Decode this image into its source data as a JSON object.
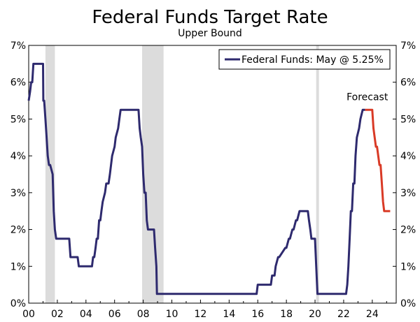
{
  "chart_data": {
    "type": "line",
    "title": "Federal Funds Target Rate",
    "subtitle": "Upper Bound",
    "xlabel": "",
    "ylabel": "",
    "xlim": [
      2000,
      2025.67
    ],
    "ylim": [
      0,
      7
    ],
    "y_ticks": [
      "0%",
      "1%",
      "2%",
      "3%",
      "4%",
      "5%",
      "6%",
      "7%"
    ],
    "x_ticks": [
      {
        "x": 2000,
        "label": "00"
      },
      {
        "x": 2002,
        "label": "02"
      },
      {
        "x": 2004,
        "label": "04"
      },
      {
        "x": 2006,
        "label": "06"
      },
      {
        "x": 2008,
        "label": "08"
      },
      {
        "x": 2010,
        "label": "10"
      },
      {
        "x": 2012,
        "label": "12"
      },
      {
        "x": 2014,
        "label": "14"
      },
      {
        "x": 2016,
        "label": "16"
      },
      {
        "x": 2018,
        "label": "18"
      },
      {
        "x": 2020,
        "label": "20"
      },
      {
        "x": 2022,
        "label": "22"
      },
      {
        "x": 2024,
        "label": "24"
      }
    ],
    "legend": {
      "position": "top-right",
      "label": "Federal Funds: May @ 5.25%"
    },
    "recessions": [
      [
        2001.17,
        2001.83
      ],
      [
        2007.92,
        2009.42
      ],
      [
        2020.08,
        2020.25
      ]
    ],
    "annotations": [
      {
        "text": "Forecast",
        "x": 2023.75,
        "y": 5.25
      }
    ],
    "colors": {
      "actual": "#2e2a6e",
      "forecast": "#d93a26",
      "recession": "#dcdcdc"
    },
    "series": [
      {
        "name": "Federal Funds",
        "x": [
          2000.0,
          2000.1,
          2000.17,
          2000.25,
          2000.33,
          2000.42,
          2000.5,
          2001.0,
          2001.02,
          2001.08,
          2001.17,
          2001.25,
          2001.33,
          2001.42,
          2001.5,
          2001.67,
          2001.75,
          2001.83,
          2001.92,
          2002.0,
          2002.83,
          2002.92,
          2003.42,
          2003.5,
          2004.42,
          2004.5,
          2004.58,
          2004.67,
          2004.75,
          2004.83,
          2004.92,
          2005.0,
          2005.08,
          2005.17,
          2005.33,
          2005.42,
          2005.58,
          2005.67,
          2005.75,
          2005.83,
          2006.0,
          2006.08,
          2006.25,
          2006.33,
          2006.42,
          2006.5,
          2007.67,
          2007.75,
          2007.83,
          2007.92,
          2008.0,
          2008.08,
          2008.17,
          2008.25,
          2008.33,
          2008.75,
          2008.83,
          2008.92,
          2008.96,
          2015.92,
          2016.0,
          2016.92,
          2017.0,
          2017.17,
          2017.25,
          2017.42,
          2017.5,
          2017.92,
          2018.0,
          2018.17,
          2018.25,
          2018.42,
          2018.5,
          2018.67,
          2018.75,
          2018.92,
          2019.0,
          2019.5,
          2019.58,
          2019.67,
          2019.75,
          2019.83,
          2020.0,
          2020.17,
          2020.2,
          2022.17,
          2022.25,
          2022.33,
          2022.42,
          2022.5,
          2022.58,
          2022.67,
          2022.75,
          2022.83,
          2022.92,
          2023.08,
          2023.17,
          2023.33,
          2023.5
        ],
        "values": [
          5.5,
          5.75,
          6.0,
          6.0,
          6.5,
          6.5,
          6.5,
          6.5,
          5.5,
          5.5,
          5.0,
          4.5,
          4.0,
          3.75,
          3.75,
          3.5,
          2.5,
          2.0,
          1.75,
          1.75,
          1.75,
          1.25,
          1.25,
          1.0,
          1.0,
          1.25,
          1.25,
          1.5,
          1.75,
          1.75,
          2.25,
          2.25,
          2.5,
          2.75,
          3.0,
          3.25,
          3.25,
          3.5,
          3.75,
          4.0,
          4.25,
          4.5,
          4.75,
          5.0,
          5.25,
          5.25,
          5.25,
          4.75,
          4.5,
          4.25,
          3.5,
          3.0,
          3.0,
          2.25,
          2.0,
          2.0,
          1.5,
          1.0,
          0.25,
          0.25,
          0.5,
          0.5,
          0.75,
          0.75,
          1.0,
          1.25,
          1.25,
          1.5,
          1.5,
          1.75,
          1.75,
          2.0,
          2.0,
          2.25,
          2.25,
          2.5,
          2.5,
          2.5,
          2.25,
          2.0,
          1.75,
          1.75,
          1.75,
          0.25,
          0.25,
          0.25,
          0.5,
          1.0,
          1.75,
          2.5,
          2.5,
          3.25,
          3.25,
          4.0,
          4.5,
          4.75,
          5.0,
          5.25,
          5.25
        ]
      },
      {
        "name": "Forecast",
        "x": [
          2023.5,
          2024.0,
          2024.08,
          2024.25,
          2024.33,
          2024.5,
          2024.58,
          2024.67,
          2024.75,
          2024.83,
          2025.25
        ],
        "values": [
          5.25,
          5.25,
          4.75,
          4.25,
          4.25,
          3.75,
          3.75,
          3.25,
          2.75,
          2.5,
          2.5
        ]
      }
    ]
  }
}
